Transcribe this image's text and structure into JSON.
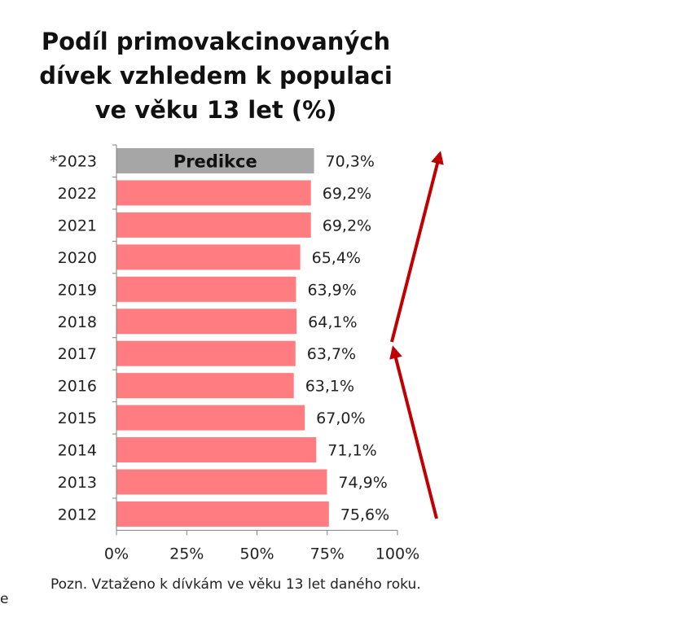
{
  "chart_data": {
    "type": "bar",
    "orientation": "horizontal",
    "title_lines": [
      "Podíl primovakcinovaných",
      "dívek vzhledem k populaci",
      "ve věku 13 let (%)"
    ],
    "categories": [
      "*2023",
      "2022",
      "2021",
      "2020",
      "2019",
      "2018",
      "2017",
      "2016",
      "2015",
      "2014",
      "2013",
      "2012"
    ],
    "values": [
      70.3,
      69.2,
      69.2,
      65.4,
      63.9,
      64.1,
      63.7,
      63.1,
      67.0,
      71.1,
      74.9,
      75.6
    ],
    "value_labels": [
      "70,3%",
      "69,2%",
      "69,2%",
      "65,4%",
      "63,9%",
      "64,1%",
      "63,7%",
      "63,1%",
      "67,0%",
      "71,1%",
      "74,9%",
      "75,6%"
    ],
    "predicted_category": "*2023",
    "predicted_label": "Predikce",
    "x_ticks": [
      0,
      25,
      50,
      75,
      100
    ],
    "x_tick_labels": [
      "0%",
      "25%",
      "50%",
      "75%",
      "100%"
    ],
    "xlim": [
      0,
      100
    ],
    "colors": {
      "bar": "#ff7c80",
      "prediction_bar": "#a6a6a6",
      "arrow": "#c00000",
      "axis": "#808080"
    },
    "grid": false,
    "legend": "none"
  },
  "note": "Pozn. Vztaženo k dívkám ve věku 13 let daného roku.",
  "edge_fragment": "e"
}
